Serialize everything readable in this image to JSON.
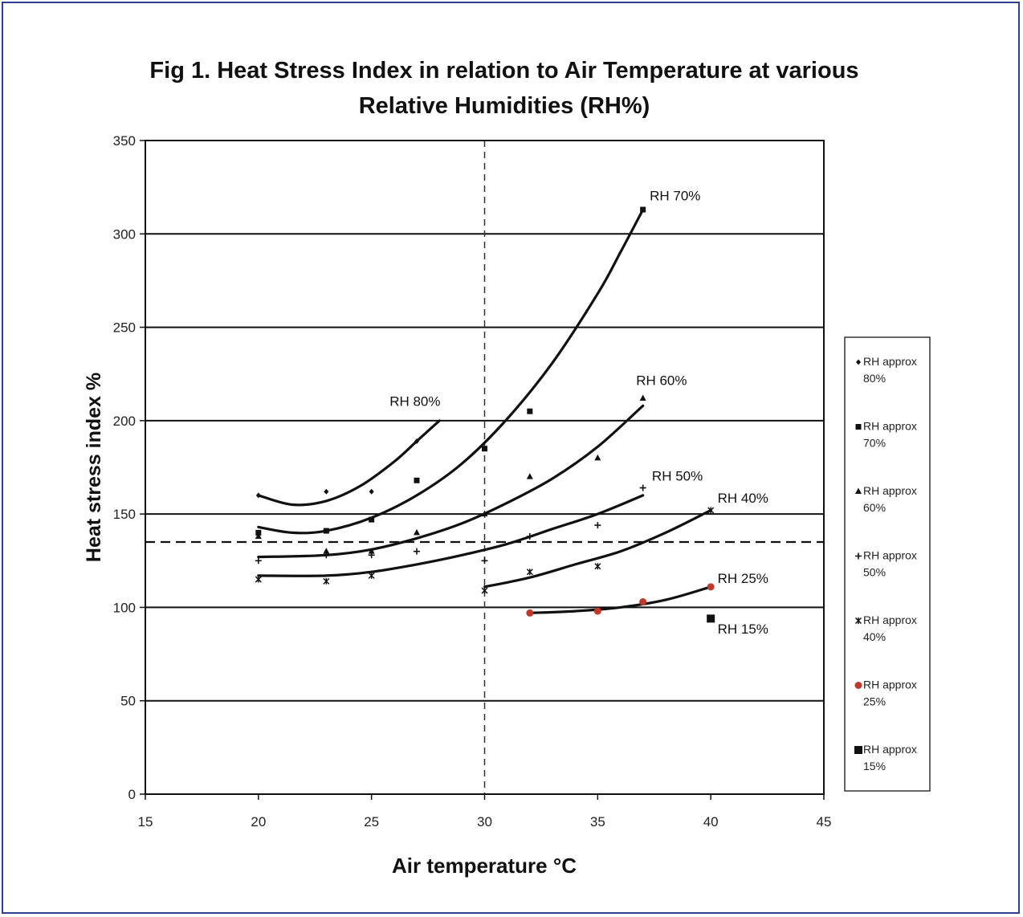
{
  "chart_data": {
    "type": "scatter",
    "title": [
      "Fig 1. Heat Stress Index in relation to Air Temperature at various",
      "Relative Humidities (RH%)"
    ],
    "xlabel": "Air temperature °C",
    "ylabel": "Heat stress index %",
    "xlim": [
      15,
      45
    ],
    "ylim": [
      0,
      350
    ],
    "xticks": [
      "15",
      "20",
      "25",
      "30",
      "35",
      "40",
      "45"
    ],
    "yticks": [
      "0",
      "50",
      "100",
      "150",
      "200",
      "250",
      "300",
      "350"
    ],
    "grid": "horizontal",
    "legend_position": "right",
    "reference_lines": [
      {
        "orientation": "vertical",
        "x": 30,
        "style": "dashed"
      },
      {
        "orientation": "horizontal",
        "y": 135,
        "style": "dashed"
      }
    ],
    "series": [
      {
        "name": "RH approx 80%",
        "marker": "diamond",
        "color": "#111111",
        "x": [
          20,
          23,
          25,
          27
        ],
        "y": [
          160,
          162,
          162,
          189
        ],
        "trend": {
          "x": [
            20,
            21.5,
            23,
            24.5,
            26,
            27,
            28
          ],
          "y": [
            160,
            155,
            157,
            165,
            178,
            189,
            200
          ]
        },
        "label": "RH 80%"
      },
      {
        "name": "RH approx 70%",
        "marker": "square",
        "color": "#111111",
        "x": [
          20,
          23,
          25,
          27,
          30,
          32,
          37
        ],
        "y": [
          140,
          141,
          147,
          168,
          185,
          205,
          313
        ],
        "trend": {
          "x": [
            20,
            21.5,
            23,
            25,
            27,
            29,
            31,
            33,
            35,
            36,
            37
          ],
          "y": [
            143,
            140,
            141,
            148,
            160,
            177,
            201,
            231,
            268,
            290,
            313
          ]
        },
        "label": "RH 70%"
      },
      {
        "name": "RH approx 60%",
        "marker": "triangle",
        "color": "#111111",
        "x": [
          20,
          23,
          25,
          27,
          30,
          32,
          35,
          37
        ],
        "y": [
          138,
          130,
          130,
          140,
          150,
          170,
          180,
          212
        ],
        "trend": {
          "x": [
            20,
            23,
            25,
            27,
            29,
            31,
            33,
            35,
            37
          ],
          "y": [
            127,
            128,
            131,
            137,
            145,
            156,
            169,
            186,
            208
          ]
        },
        "label": "RH 60%"
      },
      {
        "name": "RH approx 50%",
        "marker": "cross",
        "color": "#111111",
        "x": [
          20,
          23,
          25,
          27,
          30,
          32,
          35,
          37
        ],
        "y": [
          125,
          128,
          128,
          130,
          125,
          138,
          144,
          164
        ],
        "trend": {
          "x": [
            20,
            23,
            25,
            27,
            29,
            31,
            33,
            35,
            37
          ],
          "y": [
            117,
            117,
            119,
            123,
            128,
            134,
            142,
            150,
            160
          ]
        },
        "label": "RH 50%"
      },
      {
        "name": "RH approx 40%",
        "marker": "star",
        "color": "#111111",
        "x": [
          20,
          23,
          25,
          30,
          32,
          35,
          40
        ],
        "y": [
          115,
          114,
          117,
          109,
          119,
          122,
          152
        ],
        "trend": {
          "x": [
            30,
            32,
            34,
            36,
            38,
            40
          ],
          "y": [
            111,
            116,
            123,
            130,
            140,
            152
          ]
        },
        "label": "RH 40%"
      },
      {
        "name": "RH approx 25%",
        "marker": "circle",
        "color": "#c0392b",
        "x": [
          32,
          35,
          37,
          40
        ],
        "y": [
          97,
          98,
          103,
          111
        ],
        "trend": {
          "x": [
            32,
            34,
            36,
            38,
            40
          ],
          "y": [
            97,
            98,
            100,
            104,
            111
          ]
        },
        "label": "RH 25%"
      },
      {
        "name": "RH approx 15%",
        "marker": "bigsquare",
        "color": "#111111",
        "x": [
          40
        ],
        "y": [
          94
        ],
        "label": "RH 15%"
      }
    ],
    "curve_labels": [
      {
        "text": "RH 70%",
        "x": 37.3,
        "y": 318
      },
      {
        "text": "RH 60%",
        "x": 36.7,
        "y": 219
      },
      {
        "text": "RH 80%",
        "x": 25.8,
        "y": 208
      },
      {
        "text": "RH 50%",
        "x": 37.4,
        "y": 168
      },
      {
        "text": "RH 40%",
        "x": 40.3,
        "y": 156
      },
      {
        "text": "RH 25%",
        "x": 40.3,
        "y": 113
      },
      {
        "text": "RH 15%",
        "x": 40.3,
        "y": 86
      }
    ],
    "legend": [
      {
        "line1": "RH approx",
        "line2": "80%",
        "marker": "diamond",
        "color": "#111111"
      },
      {
        "line1": "RH approx",
        "line2": "70%",
        "marker": "square",
        "color": "#111111"
      },
      {
        "line1": "RH approx",
        "line2": "60%",
        "marker": "triangle",
        "color": "#111111"
      },
      {
        "line1": "RH approx",
        "line2": "50%",
        "marker": "cross",
        "color": "#111111"
      },
      {
        "line1": "RH approx",
        "line2": "40%",
        "marker": "star",
        "color": "#111111"
      },
      {
        "line1": "RH approx",
        "line2": "25%",
        "marker": "circle",
        "color": "#c0392b"
      },
      {
        "line1": "RH approx",
        "line2": "15%",
        "marker": "bigsquare",
        "color": "#111111"
      }
    ]
  }
}
